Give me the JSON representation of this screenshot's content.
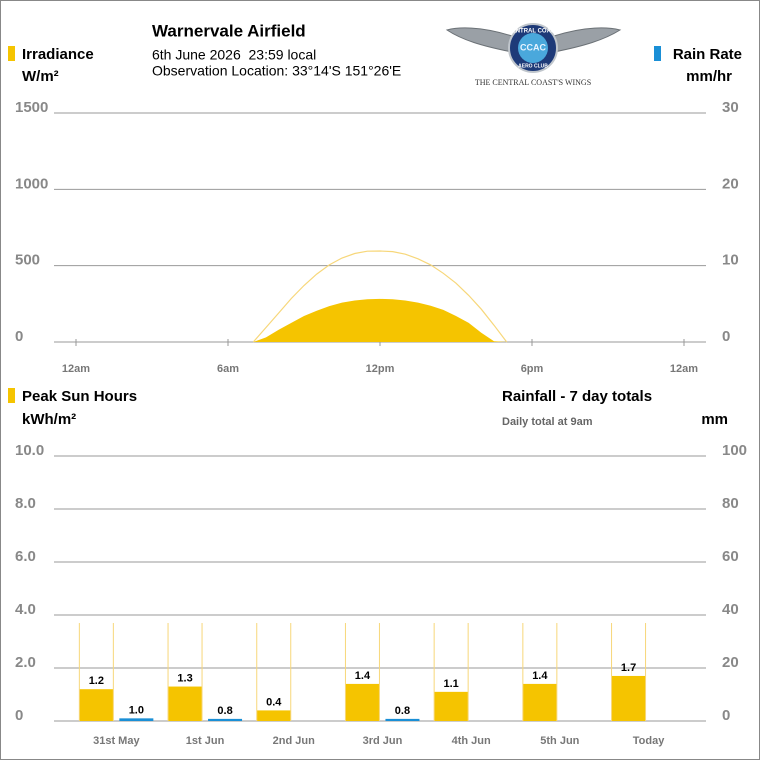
{
  "header": {
    "title": "Warnervale Airfield",
    "date": "6th June 2026  23:59 local",
    "location": "Observation Location: 33°14'S 151°26'E"
  },
  "logo": {
    "ring_top": "CENTRAL COAST",
    "ring_bottom": "AERO CLUB",
    "monogram": "CCAC",
    "tagline": "THE CENTRAL COAST'S WINGS"
  },
  "chart_data": [
    {
      "type": "area",
      "x": [
        7,
        7.5,
        8,
        8.5,
        9,
        9.5,
        10,
        10.5,
        11,
        11.5,
        12,
        12.5,
        13,
        13.5,
        14,
        14.5,
        15,
        15.5,
        16,
        16.5,
        17
      ],
      "xlim": [
        0,
        24
      ],
      "xticks": [
        {
          "value": 0,
          "label": "12am"
        },
        {
          "value": 6,
          "label": "6am"
        },
        {
          "value": 12,
          "label": "12pm"
        },
        {
          "value": 18,
          "label": "6pm"
        },
        {
          "value": 24,
          "label": "12am"
        }
      ],
      "ylim": [
        0,
        1500
      ],
      "yticks": [
        0,
        500,
        1000,
        1500
      ],
      "y2lim": [
        0,
        30
      ],
      "y2ticks": [
        0,
        10,
        20,
        30
      ],
      "grid": true,
      "series": [
        {
          "name": "Irradiance",
          "unit": "W/m²",
          "color": "#f5c400",
          "fill": true,
          "values": [
            0,
            30,
            80,
            125,
            170,
            205,
            235,
            258,
            272,
            280,
            282,
            280,
            272,
            258,
            238,
            210,
            170,
            125,
            60,
            5,
            0
          ]
        },
        {
          "color": "#f7d77a",
          "fill": false,
          "values": [
            0,
            95,
            190,
            285,
            370,
            445,
            505,
            550,
            580,
            595,
            596,
            592,
            575,
            545,
            505,
            450,
            385,
            305,
            215,
            110,
            0
          ]
        },
        {
          "name": "Rain Rate",
          "unit": "mm/hr",
          "color": "#1a8fd6",
          "fill": false,
          "axis": "y2",
          "values": [
            null,
            null,
            null,
            null,
            null,
            null,
            null,
            null,
            null,
            null,
            null,
            null,
            null,
            null,
            null,
            null,
            null,
            null,
            null,
            null,
            null
          ]
        }
      ]
    },
    {
      "type": "bar",
      "categories": [
        "31st May",
        "1st Jun",
        "2nd Jun",
        "3rd Jun",
        "4th Jun",
        "5th Jun",
        "Today"
      ],
      "ylim": [
        0,
        10
      ],
      "yticks": [
        0,
        {
          "value": 2,
          "label": "2.0"
        },
        {
          "value": 4,
          "label": "4.0"
        },
        {
          "value": 6,
          "label": "6.0"
        },
        {
          "value": 8,
          "label": "8.0"
        },
        {
          "value": 10,
          "label": "10.0"
        }
      ],
      "y2lim": [
        0,
        100
      ],
      "y2ticks": [
        0,
        20,
        40,
        60,
        80,
        100
      ],
      "grid": true,
      "series": [
        {
          "name": "Peak Sun Hours",
          "unit": "kWh/m²",
          "color": "#f5c400",
          "style": "bar",
          "side": "left",
          "values": [
            1.2,
            1.3,
            0.4,
            1.4,
            1.1,
            1.4,
            1.7
          ]
        },
        {
          "color": "#f7d77a",
          "style": "outline",
          "side": "left",
          "values": [
            3.7,
            3.7,
            3.7,
            3.7,
            3.7,
            3.7,
            3.7
          ]
        },
        {
          "name": "Rainfall - 7 day totals",
          "note": "Daily total at 9am",
          "unit": "mm",
          "color": "#1a8fd6",
          "style": "bar",
          "side": "right",
          "axis": "y2",
          "values": [
            1.0,
            0.8,
            0,
            0.8,
            0,
            0,
            0
          ],
          "value_labels": [
            "1.0",
            "0.8",
            null,
            "0.8",
            null,
            null,
            null
          ]
        }
      ]
    }
  ]
}
